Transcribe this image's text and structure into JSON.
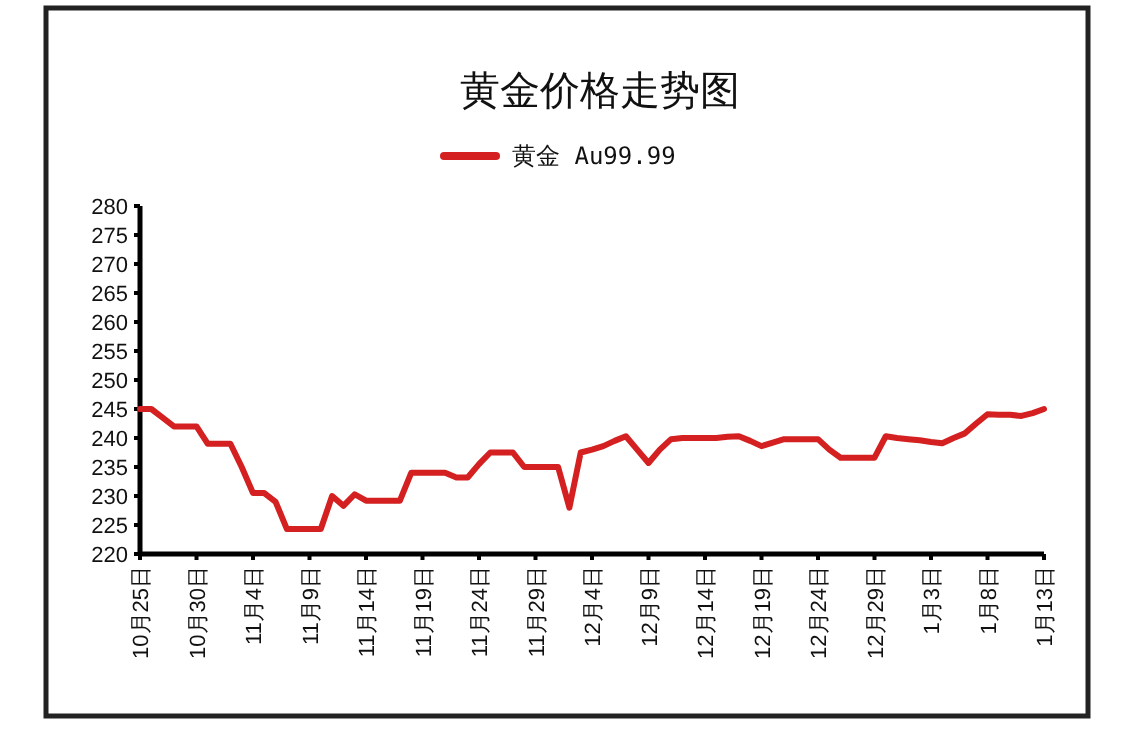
{
  "chart_data": {
    "type": "line",
    "title": "黄金价格走势图",
    "legend": "top",
    "categories": [
      "10月25日",
      null,
      null,
      null,
      null,
      "10月30日",
      null,
      null,
      null,
      null,
      "11月4日",
      null,
      null,
      null,
      null,
      "11月9日",
      null,
      null,
      null,
      null,
      "11月14日",
      null,
      null,
      null,
      null,
      "11月19日",
      null,
      null,
      null,
      null,
      "11月24日",
      null,
      null,
      null,
      null,
      "11月29日",
      null,
      null,
      null,
      null,
      "12月4日",
      null,
      null,
      null,
      null,
      "12月9日",
      null,
      null,
      null,
      null,
      "12月14日",
      null,
      null,
      null,
      null,
      "12月19日",
      null,
      null,
      null,
      null,
      "12月24日",
      null,
      null,
      null,
      null,
      "12月29日",
      null,
      null,
      null,
      null,
      "1月3日",
      null,
      null,
      null,
      null,
      "1月8日",
      null,
      null,
      null,
      null,
      "1月13日"
    ],
    "ylim": [
      220,
      280
    ],
    "yticks": [
      220,
      225,
      230,
      235,
      240,
      245,
      250,
      255,
      260,
      265,
      270,
      275,
      280
    ],
    "series": [
      {
        "name": "黄金 Au99.99",
        "color": "#d42020",
        "values": [
          245,
          245,
          243.5,
          242,
          242,
          242,
          239,
          239,
          239,
          235,
          230.5,
          230.5,
          229,
          224.3,
          224.3,
          224.3,
          224.3,
          230,
          228.3,
          230.3,
          229.2,
          229.2,
          229.2,
          229.2,
          234,
          234,
          234,
          234,
          233.2,
          233.2,
          235.5,
          237.5,
          237.5,
          237.5,
          235,
          235,
          235,
          235,
          228,
          237.5,
          238,
          238.6,
          239.5,
          240.3,
          238,
          235.7,
          238,
          239.8,
          240,
          240,
          240,
          240,
          240.2,
          240.3,
          239.5,
          238.6,
          239.2,
          239.8,
          239.8,
          239.8,
          239.8,
          238,
          236.6,
          236.6,
          236.6,
          236.6,
          240.3,
          240,
          239.8,
          239.6,
          239.3,
          239.1,
          240,
          240.8,
          242.5,
          244.1,
          244,
          244,
          243.8,
          244.3,
          245
        ]
      }
    ]
  }
}
